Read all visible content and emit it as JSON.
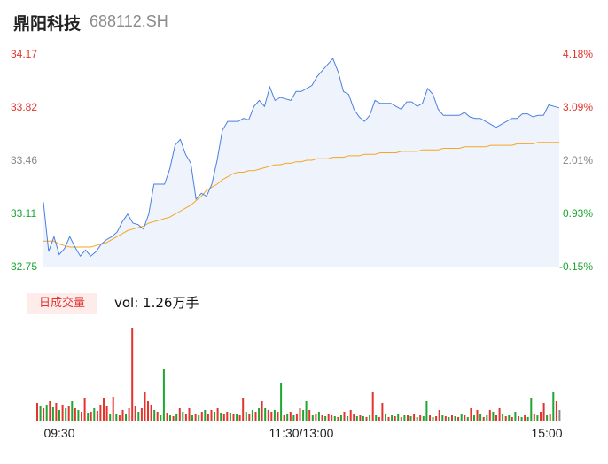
{
  "header": {
    "name": "鼎阳科技",
    "code": "688112.SH"
  },
  "volume_panel": {
    "badge_label": "日成交量",
    "vol_label": "vol: 1.26万手"
  },
  "colors": {
    "price_line": "#4a7fe0",
    "avg_line": "#f5a623",
    "up": "#e3342f",
    "down": "#1ea532",
    "neutral": "#888888",
    "area": "#eef3fc"
  },
  "chart_data": [
    {
      "type": "line",
      "ylim": [
        32.75,
        34.17
      ],
      "price_ticks": [
        "34.17",
        "33.82",
        "33.46",
        "33.11",
        "32.75"
      ],
      "pct_ticks": [
        "4.18%",
        "3.09%",
        "2.01%",
        "0.93%",
        "-0.15%"
      ],
      "grid": false,
      "series": [
        {
          "role": "price",
          "values": [
            33.18,
            32.85,
            32.95,
            32.83,
            32.87,
            32.95,
            32.88,
            32.82,
            32.86,
            32.82,
            32.85,
            32.9,
            32.93,
            32.95,
            32.98,
            33.05,
            33.1,
            33.04,
            33.03,
            33.0,
            33.1,
            33.3,
            33.3,
            33.3,
            33.4,
            33.56,
            33.6,
            33.5,
            33.44,
            33.2,
            33.24,
            33.22,
            33.3,
            33.46,
            33.66,
            33.72,
            33.72,
            33.72,
            33.74,
            33.73,
            33.82,
            33.86,
            33.82,
            33.95,
            33.86,
            33.88,
            33.87,
            33.86,
            33.92,
            33.92,
            33.94,
            33.96,
            34.02,
            34.06,
            34.1,
            34.14,
            34.05,
            33.92,
            33.9,
            33.8,
            33.75,
            33.72,
            33.76,
            33.86,
            33.84,
            33.84,
            33.84,
            33.82,
            33.8,
            33.85,
            33.85,
            33.82,
            33.84,
            33.94,
            33.9,
            33.8,
            33.76,
            33.76,
            33.76,
            33.76,
            33.78,
            33.75,
            33.74,
            33.74,
            33.72,
            33.7,
            33.68,
            33.7,
            33.72,
            33.74,
            33.74,
            33.77,
            33.77,
            33.75,
            33.76,
            33.76,
            33.83,
            33.82,
            33.81
          ]
        },
        {
          "role": "avg",
          "values": [
            32.92,
            32.92,
            32.92,
            32.9,
            32.89,
            32.88,
            32.88,
            32.88,
            32.88,
            32.88,
            32.89,
            32.9,
            32.91,
            32.93,
            32.95,
            32.97,
            32.99,
            33.0,
            33.01,
            33.02,
            33.04,
            33.05,
            33.06,
            33.07,
            33.08,
            33.1,
            33.12,
            33.14,
            33.16,
            33.19,
            33.22,
            33.26,
            33.28,
            33.3,
            33.33,
            33.35,
            33.37,
            33.38,
            33.38,
            33.39,
            33.39,
            33.4,
            33.41,
            33.42,
            33.43,
            33.43,
            33.44,
            33.44,
            33.45,
            33.45,
            33.46,
            33.46,
            33.47,
            33.47,
            33.47,
            33.48,
            33.48,
            33.48,
            33.49,
            33.49,
            33.49,
            33.5,
            33.5,
            33.5,
            33.51,
            33.51,
            33.51,
            33.51,
            33.52,
            33.52,
            33.52,
            33.52,
            33.53,
            33.53,
            33.53,
            33.53,
            33.54,
            33.54,
            33.54,
            33.54,
            33.55,
            33.55,
            33.55,
            33.55,
            33.55,
            33.56,
            33.56,
            33.56,
            33.56,
            33.56,
            33.57,
            33.57,
            33.57,
            33.57,
            33.58,
            33.58,
            33.58,
            33.58,
            33.58
          ]
        }
      ]
    },
    {
      "type": "bar",
      "x_labels": [
        "09:30",
        "11:30/13:00",
        "15:00"
      ],
      "bars": [
        {
          "v": 20,
          "c": "up"
        },
        {
          "v": 16,
          "c": "down"
        },
        {
          "v": 14,
          "c": "up"
        },
        {
          "v": 18,
          "c": "down"
        },
        {
          "v": 22,
          "c": "up"
        },
        {
          "v": 15,
          "c": "down"
        },
        {
          "v": 20,
          "c": "up"
        },
        {
          "v": 12,
          "c": "down"
        },
        {
          "v": 18,
          "c": "up"
        },
        {
          "v": 14,
          "c": "down"
        },
        {
          "v": 16,
          "c": "up"
        },
        {
          "v": 22,
          "c": "down"
        },
        {
          "v": 14,
          "c": "up"
        },
        {
          "v": 12,
          "c": "down"
        },
        {
          "v": 10,
          "c": "up"
        },
        {
          "v": 25,
          "c": "up"
        },
        {
          "v": 9,
          "c": "down"
        },
        {
          "v": 10,
          "c": "up"
        },
        {
          "v": 14,
          "c": "down"
        },
        {
          "v": 11,
          "c": "up"
        },
        {
          "v": 18,
          "c": "up"
        },
        {
          "v": 26,
          "c": "up"
        },
        {
          "v": 16,
          "c": "up"
        },
        {
          "v": 8,
          "c": "down"
        },
        {
          "v": 27,
          "c": "up"
        },
        {
          "v": 8,
          "c": "down"
        },
        {
          "v": 6,
          "c": "up"
        },
        {
          "v": 12,
          "c": "up"
        },
        {
          "v": 8,
          "c": "down"
        },
        {
          "v": 14,
          "c": "up"
        },
        {
          "v": 105,
          "c": "up"
        },
        {
          "v": 16,
          "c": "up"
        },
        {
          "v": 10,
          "c": "down"
        },
        {
          "v": 14,
          "c": "up"
        },
        {
          "v": 32,
          "c": "up"
        },
        {
          "v": 22,
          "c": "up"
        },
        {
          "v": 18,
          "c": "up"
        },
        {
          "v": 12,
          "c": "down"
        },
        {
          "v": 10,
          "c": "up"
        },
        {
          "v": 6,
          "c": "down"
        },
        {
          "v": 58,
          "c": "down"
        },
        {
          "v": 9,
          "c": "up"
        },
        {
          "v": 6,
          "c": "down"
        },
        {
          "v": 5,
          "c": "up"
        },
        {
          "v": 8,
          "c": "down"
        },
        {
          "v": 14,
          "c": "up"
        },
        {
          "v": 10,
          "c": "down"
        },
        {
          "v": 8,
          "c": "up"
        },
        {
          "v": 14,
          "c": "up"
        },
        {
          "v": 6,
          "c": "down"
        },
        {
          "v": 8,
          "c": "up"
        },
        {
          "v": 6,
          "c": "down"
        },
        {
          "v": 10,
          "c": "up"
        },
        {
          "v": 12,
          "c": "down"
        },
        {
          "v": 8,
          "c": "up"
        },
        {
          "v": 12,
          "c": "up"
        },
        {
          "v": 10,
          "c": "down"
        },
        {
          "v": 14,
          "c": "up"
        },
        {
          "v": 9,
          "c": "down"
        },
        {
          "v": 8,
          "c": "up"
        },
        {
          "v": 10,
          "c": "up"
        },
        {
          "v": 9,
          "c": "down"
        },
        {
          "v": 8,
          "c": "up"
        },
        {
          "v": 7,
          "c": "down"
        },
        {
          "v": 6,
          "c": "up"
        },
        {
          "v": 26,
          "c": "up"
        },
        {
          "v": 10,
          "c": "down"
        },
        {
          "v": 8,
          "c": "up"
        },
        {
          "v": 12,
          "c": "down"
        },
        {
          "v": 10,
          "c": "up"
        },
        {
          "v": 14,
          "c": "down"
        },
        {
          "v": 22,
          "c": "up"
        },
        {
          "v": 14,
          "c": "down"
        },
        {
          "v": 12,
          "c": "up"
        },
        {
          "v": 10,
          "c": "up"
        },
        {
          "v": 12,
          "c": "down"
        },
        {
          "v": 10,
          "c": "up"
        },
        {
          "v": 42,
          "c": "down"
        },
        {
          "v": 6,
          "c": "up"
        },
        {
          "v": 8,
          "c": "down"
        },
        {
          "v": 10,
          "c": "up"
        },
        {
          "v": 6,
          "c": "down"
        },
        {
          "v": 8,
          "c": "up"
        },
        {
          "v": 14,
          "c": "up"
        },
        {
          "v": 12,
          "c": "down"
        },
        {
          "v": 22,
          "c": "down"
        },
        {
          "v": 12,
          "c": "up"
        },
        {
          "v": 6,
          "c": "down"
        },
        {
          "v": 8,
          "c": "up"
        },
        {
          "v": 10,
          "c": "down"
        },
        {
          "v": 6,
          "c": "up"
        },
        {
          "v": 5,
          "c": "down"
        },
        {
          "v": 8,
          "c": "up"
        },
        {
          "v": 6,
          "c": "up"
        },
        {
          "v": 5,
          "c": "down"
        },
        {
          "v": 4,
          "c": "up"
        },
        {
          "v": 6,
          "c": "down"
        },
        {
          "v": 10,
          "c": "up"
        },
        {
          "v": 5,
          "c": "down"
        },
        {
          "v": 12,
          "c": "up"
        },
        {
          "v": 8,
          "c": "up"
        },
        {
          "v": 5,
          "c": "down"
        },
        {
          "v": 6,
          "c": "up"
        },
        {
          "v": 5,
          "c": "down"
        },
        {
          "v": 4,
          "c": "up"
        },
        {
          "v": 6,
          "c": "down"
        },
        {
          "v": 32,
          "c": "up"
        },
        {
          "v": 6,
          "c": "down"
        },
        {
          "v": 4,
          "c": "up"
        },
        {
          "v": 20,
          "c": "up"
        },
        {
          "v": 8,
          "c": "down"
        },
        {
          "v": 4,
          "c": "up"
        },
        {
          "v": 6,
          "c": "down"
        },
        {
          "v": 5,
          "c": "up"
        },
        {
          "v": 8,
          "c": "down"
        },
        {
          "v": 4,
          "c": "up"
        },
        {
          "v": 6,
          "c": "down"
        },
        {
          "v": 6,
          "c": "up"
        },
        {
          "v": 5,
          "c": "down"
        },
        {
          "v": 8,
          "c": "up"
        },
        {
          "v": 4,
          "c": "down"
        },
        {
          "v": 6,
          "c": "up"
        },
        {
          "v": 5,
          "c": "down"
        },
        {
          "v": 22,
          "c": "down"
        },
        {
          "v": 6,
          "c": "up"
        },
        {
          "v": 4,
          "c": "down"
        },
        {
          "v": 5,
          "c": "up"
        },
        {
          "v": 12,
          "c": "up"
        },
        {
          "v": 6,
          "c": "down"
        },
        {
          "v": 5,
          "c": "up"
        },
        {
          "v": 4,
          "c": "down"
        },
        {
          "v": 6,
          "c": "up"
        },
        {
          "v": 5,
          "c": "down"
        },
        {
          "v": 4,
          "c": "up"
        },
        {
          "v": 8,
          "c": "down"
        },
        {
          "v": 6,
          "c": "up"
        },
        {
          "v": 4,
          "c": "down"
        },
        {
          "v": 14,
          "c": "up"
        },
        {
          "v": 6,
          "c": "down"
        },
        {
          "v": 12,
          "c": "up"
        },
        {
          "v": 8,
          "c": "down"
        },
        {
          "v": 4,
          "c": "up"
        },
        {
          "v": 6,
          "c": "down"
        },
        {
          "v": 12,
          "c": "up"
        },
        {
          "v": 10,
          "c": "down"
        },
        {
          "v": 6,
          "c": "up"
        },
        {
          "v": 14,
          "c": "up"
        },
        {
          "v": 8,
          "c": "down"
        },
        {
          "v": 5,
          "c": "up"
        },
        {
          "v": 6,
          "c": "down"
        },
        {
          "v": 4,
          "c": "up"
        },
        {
          "v": 10,
          "c": "down"
        },
        {
          "v": 5,
          "c": "up"
        },
        {
          "v": 4,
          "c": "down"
        },
        {
          "v": 6,
          "c": "up"
        },
        {
          "v": 4,
          "c": "down"
        },
        {
          "v": 26,
          "c": "down"
        },
        {
          "v": 8,
          "c": "up"
        },
        {
          "v": 6,
          "c": "down"
        },
        {
          "v": 10,
          "c": "up"
        },
        {
          "v": 20,
          "c": "up"
        },
        {
          "v": 6,
          "c": "down"
        },
        {
          "v": 8,
          "c": "up"
        },
        {
          "v": 32,
          "c": "down"
        },
        {
          "v": 22,
          "c": "up"
        },
        {
          "v": 12,
          "c": "neutral"
        }
      ]
    }
  ]
}
